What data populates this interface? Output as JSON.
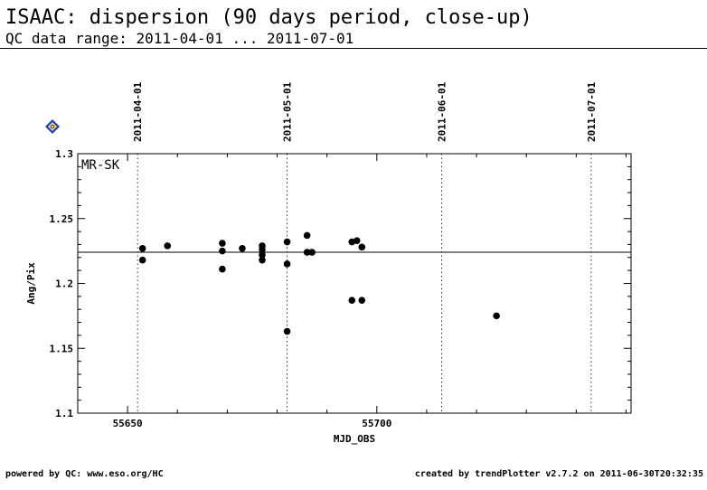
{
  "header": {
    "title": "ISAAC: dispersion (90 days period, close-up)",
    "subtitle": "QC data range: 2011-04-01 ... 2011-07-01"
  },
  "footer": {
    "left": "powered by QC: www.eso.org/HC",
    "right": "created by trendPlotter v2.7.2 on 2011-06-30T20:32:35"
  },
  "chart_data": {
    "type": "scatter",
    "panel_label": "MR-SK",
    "xlabel": "MJD_OBS",
    "ylabel": "Ang/Pix",
    "xlim": [
      55640,
      55751
    ],
    "ylim": [
      1.1,
      1.3
    ],
    "x_ticks": [
      55650,
      55700
    ],
    "y_ticks": [
      1.1,
      1.15,
      1.2,
      1.25,
      1.3
    ],
    "date_markers": [
      {
        "label": "2011-04-01",
        "x": 55652
      },
      {
        "label": "2011-05-01",
        "x": 55682
      },
      {
        "label": "2011-06-01",
        "x": 55713
      },
      {
        "label": "2011-07-01",
        "x": 55743
      }
    ],
    "reference_line": 1.224,
    "points": [
      {
        "x": 55653,
        "y": 1.227
      },
      {
        "x": 55653,
        "y": 1.218
      },
      {
        "x": 55658,
        "y": 1.229
      },
      {
        "x": 55669,
        "y": 1.231
      },
      {
        "x": 55669,
        "y": 1.225
      },
      {
        "x": 55669,
        "y": 1.211
      },
      {
        "x": 55673,
        "y": 1.227
      },
      {
        "x": 55677,
        "y": 1.229
      },
      {
        "x": 55677,
        "y": 1.226
      },
      {
        "x": 55677,
        "y": 1.222
      },
      {
        "x": 55677,
        "y": 1.218
      },
      {
        "x": 55682,
        "y": 1.232
      },
      {
        "x": 55682,
        "y": 1.215
      },
      {
        "x": 55682,
        "y": 1.163
      },
      {
        "x": 55686,
        "y": 1.237
      },
      {
        "x": 55686,
        "y": 1.224
      },
      {
        "x": 55687,
        "y": 1.224
      },
      {
        "x": 55695,
        "y": 1.232
      },
      {
        "x": 55695,
        "y": 1.187
      },
      {
        "x": 55696,
        "y": 1.233
      },
      {
        "x": 55697,
        "y": 1.228
      },
      {
        "x": 55697,
        "y": 1.187
      },
      {
        "x": 55724,
        "y": 1.175
      }
    ],
    "colors": {
      "points": "#000000",
      "marker_fill": "#ffd84a",
      "marker_border": "#1a3bd6"
    },
    "marker_icon": "diamond-marker-icon",
    "grid": false
  }
}
